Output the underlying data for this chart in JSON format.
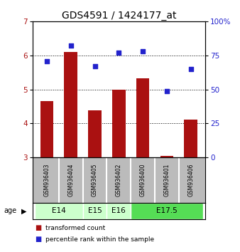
{
  "title": "GDS4591 / 1424177_at",
  "samples": [
    "GSM936403",
    "GSM936404",
    "GSM936405",
    "GSM936402",
    "GSM936400",
    "GSM936401",
    "GSM936406"
  ],
  "red_values": [
    4.65,
    6.1,
    4.38,
    5.0,
    5.32,
    3.05,
    4.12
  ],
  "blue_values": [
    71,
    82,
    67,
    77,
    78,
    49,
    65
  ],
  "ylim_left": [
    3,
    7
  ],
  "ylim_right": [
    0,
    100
  ],
  "yticks_left": [
    3,
    4,
    5,
    6,
    7
  ],
  "yticks_right": [
    0,
    25,
    50,
    75,
    100
  ],
  "ytick_labels_right": [
    "0",
    "25",
    "50",
    "75",
    "100%"
  ],
  "age_groups": [
    {
      "label": "E14",
      "samples": [
        "GSM936403",
        "GSM936404"
      ],
      "color": "#ccffcc"
    },
    {
      "label": "E15",
      "samples": [
        "GSM936405"
      ],
      "color": "#ccffcc"
    },
    {
      "label": "E16",
      "samples": [
        "GSM936402"
      ],
      "color": "#ccffcc"
    },
    {
      "label": "E17.5",
      "samples": [
        "GSM936400",
        "GSM936401",
        "GSM936406"
      ],
      "color": "#55dd55"
    }
  ],
  "bar_color": "#aa1111",
  "dot_color": "#2222cc",
  "background_color": "#ffffff",
  "sample_box_color": "#bbbbbb",
  "title_fontsize": 10,
  "tick_fontsize": 7.5,
  "sample_fontsize": 5.5,
  "age_fontsize": 7.5,
  "legend_fontsize": 6.5
}
